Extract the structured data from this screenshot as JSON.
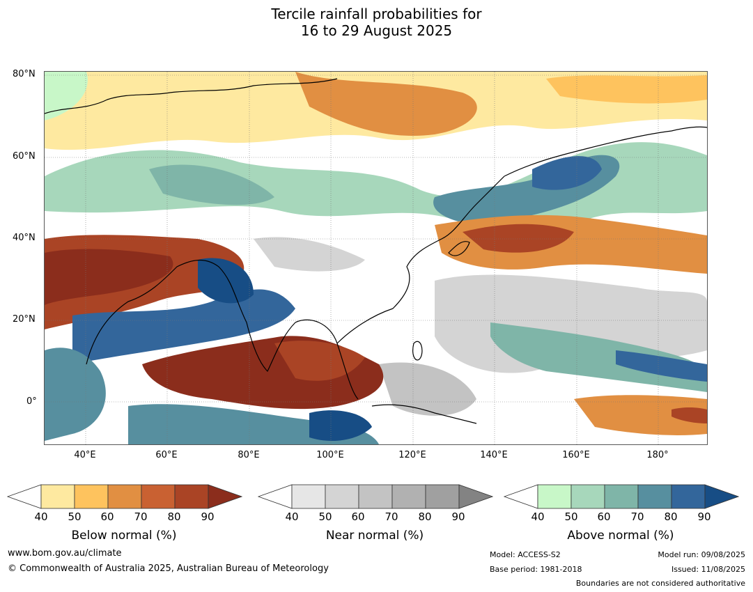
{
  "title": {
    "line1": "Tercile rainfall probabilities for",
    "line2": "16 to 29 August 2025"
  },
  "lat_ticks": [
    "80°N",
    "60°N",
    "40°N",
    "20°N",
    "0°"
  ],
  "lon_ticks": [
    "40°E",
    "60°E",
    "80°E",
    "100°E",
    "120°E",
    "140°E",
    "160°E",
    "180°"
  ],
  "colorbars": [
    {
      "label": "Below normal (%)",
      "ticks": [
        "40",
        "50",
        "60",
        "70",
        "80",
        "90"
      ],
      "colors": [
        "#fee9a0",
        "#fec35e",
        "#e18f42",
        "#c96132",
        "#aa4425"
      ],
      "over": "#8b2d1c"
    },
    {
      "label": "Near normal (%)",
      "ticks": [
        "40",
        "50",
        "60",
        "70",
        "80",
        "90"
      ],
      "colors": [
        "#e6e6e6",
        "#d4d4d4",
        "#c3c3c3",
        "#b1b1b1",
        "#a0a0a0"
      ],
      "over": "#838383"
    },
    {
      "label": "Above normal (%)",
      "ticks": [
        "40",
        "50",
        "60",
        "70",
        "80",
        "90"
      ],
      "colors": [
        "#c8f7c8",
        "#a7d7bb",
        "#7fb5a8",
        "#578f9f",
        "#33669b"
      ],
      "over": "#174d85"
    }
  ],
  "footer": {
    "url": "www.bom.gov.au/climate",
    "copyright": "© Commonwealth of Australia 2025, Australian Bureau of Meteorology",
    "model": "Model: ACCESS-S2",
    "base_period": "Base period: 1981-2018",
    "model_run": "Model run: 09/08/2025",
    "issued": "Issued: 11/08/2025",
    "disclaimer": "Boundaries are not considered authoritative"
  }
}
